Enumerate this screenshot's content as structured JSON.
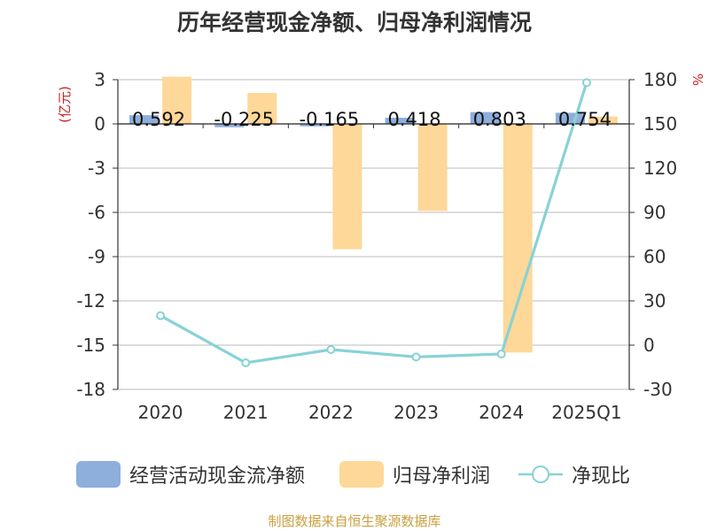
{
  "title": "历年经营现金净额、归母净利润情况",
  "unit_left": "(亿元)",
  "unit_right": "%",
  "source": "制图数据来自恒生聚源数据库",
  "colors": {
    "cash": "#8eaedb",
    "profit": "#fdd898",
    "ratio": "#88d2d6",
    "unit_label": "#cc2222",
    "axis": "#333333",
    "grid": "#bbbbbb"
  },
  "chart_data": {
    "type": "bar",
    "categories": [
      "2020",
      "2021",
      "2022",
      "2023",
      "2024",
      "2025Q1"
    ],
    "left_axis": {
      "ylim": [
        -18,
        3
      ],
      "ticks": [
        "3",
        "0",
        "-3",
        "-6",
        "-9",
        "-12",
        "-15",
        "-18"
      ]
    },
    "right_axis": {
      "ylim": [
        -30,
        180
      ],
      "ticks": [
        "180",
        "150",
        "120",
        "90",
        "60",
        "30",
        "0",
        "-30"
      ]
    },
    "series": [
      {
        "name": "经营活动现金流净额",
        "type": "bar",
        "axis": "left",
        "values": [
          0.592,
          -0.225,
          -0.165,
          0.418,
          0.803,
          0.754
        ],
        "labels": [
          "0.592",
          "-0.225",
          "-0.165",
          "0.418",
          "0.803",
          "0.754"
        ]
      },
      {
        "name": "归母净利润",
        "type": "bar",
        "axis": "left",
        "values": [
          3.2,
          2.1,
          -8.5,
          -5.9,
          -15.5,
          0.5
        ]
      },
      {
        "name": "净现比",
        "type": "line",
        "axis": "right",
        "values": [
          20,
          -12,
          -3,
          -8,
          -6,
          178
        ]
      }
    ],
    "grid": true,
    "legend_position": "bottom"
  }
}
